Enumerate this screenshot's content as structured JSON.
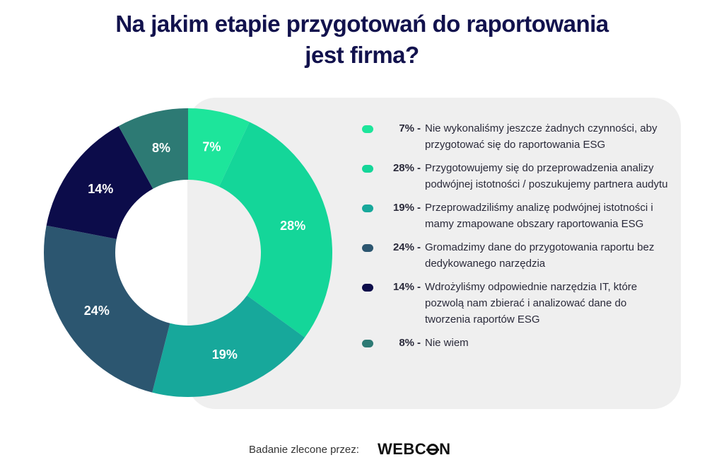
{
  "header": {
    "title_line1": "Na jakim etapie przygotowań do raportowania",
    "title_line2": "jest firma?"
  },
  "footer": {
    "text": "Badanie zlecone przez:",
    "logo_pre": "WEBC",
    "logo_post": "N",
    "logo_full": "WEBCON"
  },
  "chart_data": {
    "type": "pie",
    "title": "Na jakim etapie przygotowań do raportowania jest firma?",
    "unit": "%",
    "slices": [
      {
        "label": "Nie wykonaliśmy jeszcze żadnych czynności, aby przygotować się do raportowania ESG",
        "value": 7,
        "display": "7%",
        "color": "#1de59b"
      },
      {
        "label": "Przygotowujemy się do przeprowadzenia analizy podwójnej istotności / poszukujemy partnera audytu",
        "value": 28,
        "display": "28%",
        "color": "#14d699"
      },
      {
        "label": "Przeprowadziliśmy analizę podwójnej istotności i mamy zmapowane obszary raportowania ESG",
        "value": 19,
        "display": "19%",
        "color": "#17a89b"
      },
      {
        "label": "Gromadzimy dane do przygotowania raportu bez dedykowanego narzędzia",
        "value": 24,
        "display": "24%",
        "color": "#2c5670"
      },
      {
        "label": "Wdrożyliśmy odpowiednie narzędzia IT, które pozwolą nam zbierać i analizować dane do tworzenia raportów ESG",
        "value": 14,
        "display": "14%",
        "color": "#0c0c4a"
      },
      {
        "label": "Nie wiem",
        "value": 8,
        "display": "8%",
        "color": "#2d7a74"
      }
    ],
    "legend_position": "right"
  }
}
